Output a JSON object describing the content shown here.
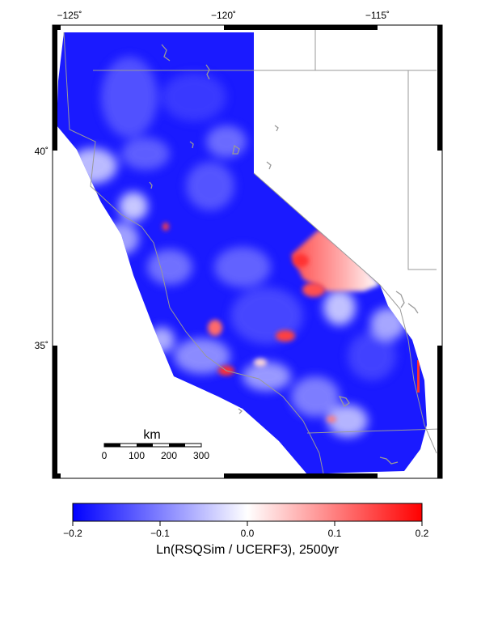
{
  "map": {
    "lon_ticks": [
      {
        "value": -125,
        "label": "−125˚"
      },
      {
        "value": -120,
        "label": "−120˚"
      },
      {
        "value": -115,
        "label": "−115˚"
      }
    ],
    "lat_ticks": [
      {
        "value": 40,
        "label": "40˚"
      },
      {
        "value": 35,
        "label": "35˚"
      }
    ],
    "lon_range": [
      -126,
      -113.5
    ],
    "lat_range": [
      32,
      43.5
    ],
    "colors": {
      "neg": "#0000ff",
      "zero": "#ffffff",
      "pos": "#ff0000",
      "lakes": "#999999",
      "borders": "#999999",
      "frame": "#000000"
    },
    "scale_bar": {
      "title": "km",
      "labels": [
        "0",
        "100",
        "200",
        "300"
      ]
    }
  },
  "colorbar": {
    "min": -0.2,
    "max": 0.2,
    "tick_labels": [
      "−0.2",
      "−0.1",
      "0.0",
      "0.1",
      "0.2"
    ],
    "label": "Ln(RSQSim / UCERF3), 2500yr"
  }
}
